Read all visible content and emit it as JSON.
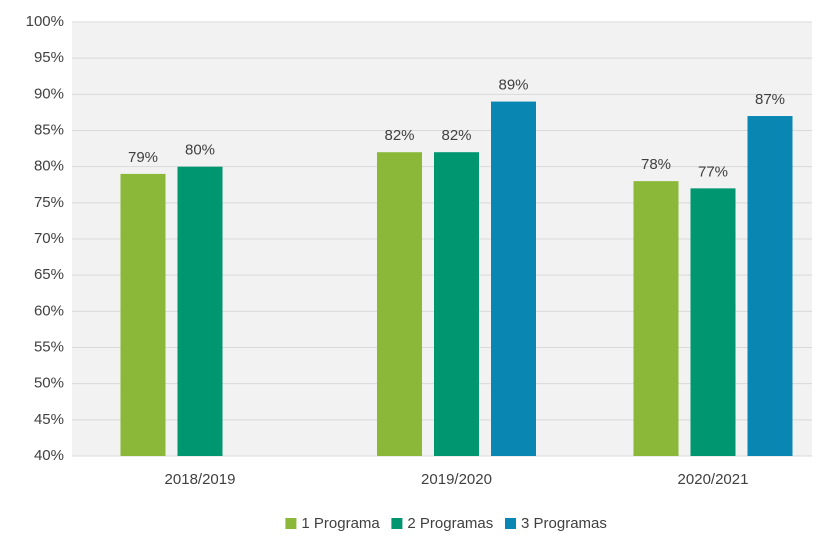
{
  "chart_data": {
    "type": "bar",
    "categories": [
      "2018/2019",
      "2019/2020",
      "2020/2021"
    ],
    "series": [
      {
        "name": "1 Programa",
        "color": "#8cb83a",
        "values": [
          79,
          82,
          78
        ],
        "value_labels": [
          "79%",
          "82%",
          "78%"
        ]
      },
      {
        "name": "2 Programas",
        "color": "#009670",
        "values": [
          80,
          82,
          77
        ],
        "value_labels": [
          "80%",
          "82%",
          "77%"
        ]
      },
      {
        "name": "3 Programas",
        "color": "#0a86b3",
        "values": [
          null,
          89,
          87
        ],
        "value_labels": [
          null,
          "89%",
          "87%"
        ]
      }
    ],
    "ylim": [
      40,
      100
    ],
    "yticks": [
      {
        "value": 40,
        "label": "40%"
      },
      {
        "value": 45,
        "label": "45%"
      },
      {
        "value": 50,
        "label": "50%"
      },
      {
        "value": 55,
        "label": "55%"
      },
      {
        "value": 60,
        "label": "60%"
      },
      {
        "value": 65,
        "label": "65%"
      },
      {
        "value": 70,
        "label": "70%"
      },
      {
        "value": 75,
        "label": "75%"
      },
      {
        "value": 80,
        "label": "80%"
      },
      {
        "value": 85,
        "label": "85%"
      },
      {
        "value": 90,
        "label": "90%"
      },
      {
        "value": 95,
        "label": "95%"
      },
      {
        "value": 100,
        "label": "100%"
      }
    ],
    "grid": true,
    "legend": "bottom"
  }
}
